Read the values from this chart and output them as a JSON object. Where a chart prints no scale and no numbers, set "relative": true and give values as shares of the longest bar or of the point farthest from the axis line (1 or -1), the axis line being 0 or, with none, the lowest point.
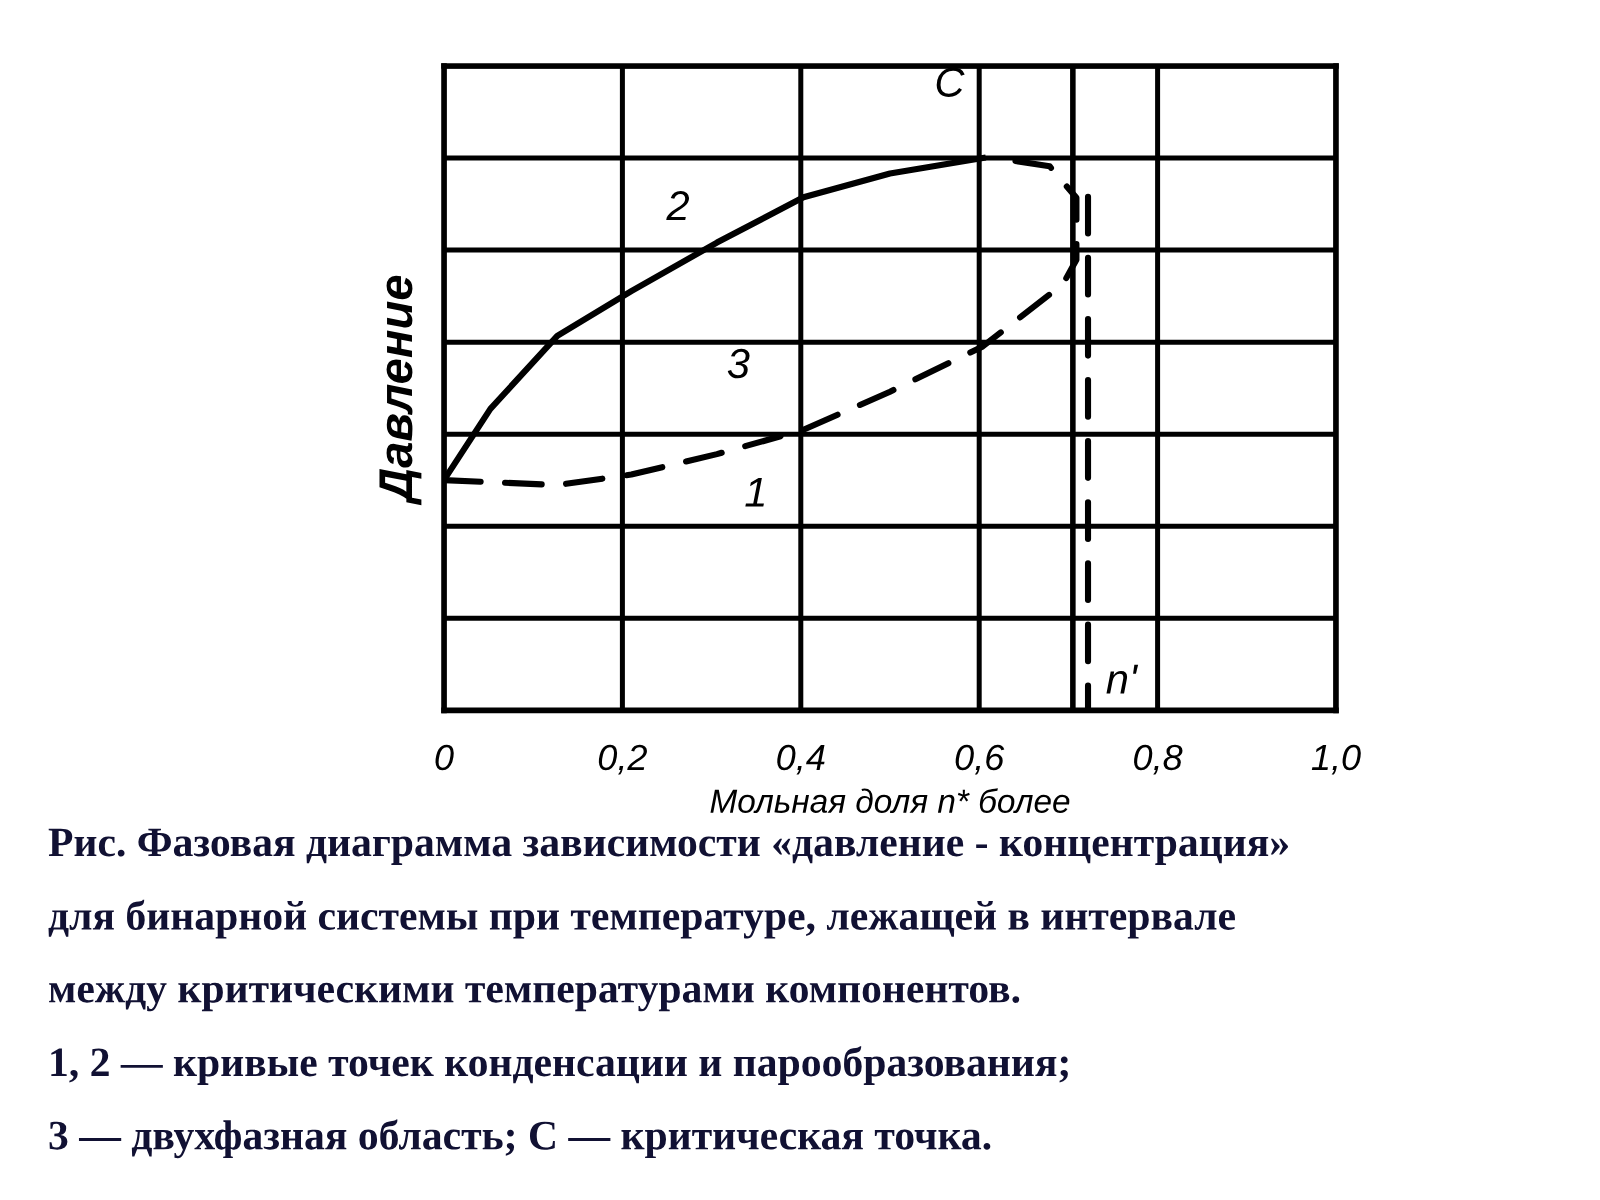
{
  "chart_data": {
    "type": "line",
    "relative": true,
    "xlabel": "Мольная доля n* более",
    "ylabel": "Давление",
    "xlim": [
      0,
      1.0
    ],
    "xticks": [
      0,
      {
        "value": 0.2,
        "label": "0,2"
      },
      {
        "value": 0.4,
        "label": "0,4"
      },
      {
        "value": 0.6,
        "label": "0,6"
      },
      {
        "value": 0.8,
        "label": "0,8"
      },
      {
        "value": 1.0,
        "label": "1,0"
      }
    ],
    "grid": true,
    "tick_labels": "x",
    "series": [
      {
        "name": "2",
        "color": "#000000",
        "line_style": "solid",
        "x": [
          0,
          0.052,
          0.127,
          0.21,
          0.306,
          0.403,
          0.5,
          0.604
        ],
        "values": [
          0.417,
          0.546,
          0.678,
          0.759,
          0.847,
          0.929,
          0.972,
          1.0
        ]
      },
      {
        "name": "1",
        "color": "#000000",
        "line_style": "dashed",
        "x": [
          0,
          0.127,
          0.21,
          0.306,
          0.403,
          0.5,
          0.604,
          0.694,
          0.709,
          0.709,
          0.679,
          0.619
        ],
        "values": [
          0.417,
          0.408,
          0.427,
          0.464,
          0.508,
          0.577,
          0.659,
          0.772,
          0.816,
          0.928,
          0.985,
          1.0
        ]
      },
      {
        "name": "n'",
        "color": "#000000",
        "line_style": "dashed",
        "x": [
          0.722,
          0.722
        ],
        "values": [
          0.93,
          0
        ]
      }
    ],
    "ref_lines": [
      {
        "axis": "x",
        "value": 0.705,
        "color": "#000000",
        "line_style": "solid"
      }
    ],
    "annotations": [
      {
        "text": "C",
        "x": 0.604,
        "y": 1.0
      },
      "3",
      "Рис. Фазовая диаграмма зависимости «давление - концентрация»",
      "для бинарной системы при температуре, лежащей в интервале",
      "между критическими температурами компонентов.",
      "1, 2 — кривые точек конденсации и парообразования;",
      "3 — двухфазная область; C — критическая точка."
    ]
  }
}
